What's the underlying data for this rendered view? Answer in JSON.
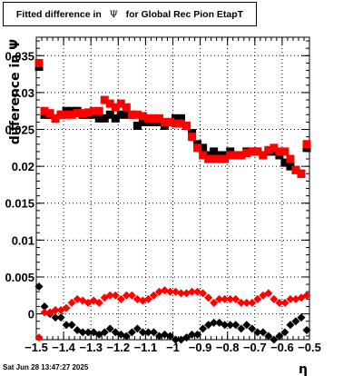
{
  "chart_data": {
    "type": "scatter",
    "title": "Fitted difference in Ψ for Global Rec Pion EtapT",
    "title_parts": [
      "Fitted difference in",
      "Ψ",
      "for Global Rec Pion EtapT"
    ],
    "xlabel": "η",
    "ylabel": "difference in Ψ",
    "xlim": [
      -1.5,
      -0.5
    ],
    "ylim": [
      -0.0035,
      0.0375
    ],
    "x_ticks": [
      -1.5,
      -1.4,
      -1.3,
      -1.2,
      -1.1,
      -1,
      -0.9,
      -0.8,
      -0.7,
      -0.6,
      -0.5
    ],
    "x_tick_labels": [
      "−1.5",
      "−1.4",
      "−1.3",
      "−1.2",
      "−1.1",
      "−1",
      "−0.9",
      "−0.8",
      "−0.7",
      "−0.6",
      "−0.5"
    ],
    "y_ticks": [
      0,
      0.005,
      0.01,
      0.015,
      0.02,
      0.025,
      0.03,
      0.035
    ],
    "y_tick_labels": [
      "0",
      "0.005",
      "0.01",
      "0.015",
      "0.02",
      "0.025",
      "0.03",
      "0.035"
    ],
    "grid": true,
    "legend": "none",
    "x": [
      -1.49,
      -1.47,
      -1.45,
      -1.43,
      -1.41,
      -1.39,
      -1.37,
      -1.35,
      -1.33,
      -1.31,
      -1.29,
      -1.27,
      -1.25,
      -1.23,
      -1.21,
      -1.19,
      -1.17,
      -1.15,
      -1.13,
      -1.11,
      -1.09,
      -1.07,
      -1.05,
      -1.03,
      -1.01,
      -0.99,
      -0.97,
      -0.95,
      -0.93,
      -0.91,
      -0.89,
      -0.87,
      -0.85,
      -0.83,
      -0.81,
      -0.79,
      -0.77,
      -0.75,
      -0.73,
      -0.71,
      -0.69,
      -0.67,
      -0.65,
      -0.63,
      -0.61,
      -0.59,
      -0.57,
      -0.55,
      -0.53,
      -0.51
    ],
    "series": [
      {
        "marker": "square",
        "color": "#000000",
        "values": [
          0.0335,
          0.027,
          0.027,
          0.0265,
          0.027,
          0.0275,
          0.0275,
          0.0275,
          0.027,
          0.027,
          0.027,
          0.0265,
          0.0265,
          0.027,
          0.0265,
          0.027,
          0.027,
          0.027,
          0.0255,
          0.026,
          0.026,
          0.026,
          0.026,
          0.0255,
          0.026,
          0.0265,
          0.0265,
          0.0255,
          0.0245,
          0.023,
          0.0225,
          0.0215,
          0.022,
          0.0215,
          0.0215,
          0.022,
          0.0215,
          0.0215,
          0.022,
          0.022,
          0.022,
          0.0215,
          0.022,
          0.022,
          0.0215,
          0.0205,
          0.02,
          0.0195,
          0.019,
          0.0225
        ]
      },
      {
        "marker": "square",
        "color": "#ff0000",
        "values": [
          0.034,
          0.0275,
          0.0272,
          0.0265,
          0.027,
          0.027,
          0.027,
          0.0272,
          0.0272,
          0.0273,
          0.0275,
          0.0275,
          0.029,
          0.0285,
          0.028,
          0.0285,
          0.028,
          0.027,
          0.027,
          0.0268,
          0.0265,
          0.0265,
          0.0265,
          0.026,
          0.026,
          0.0258,
          0.0258,
          0.0255,
          0.024,
          0.0225,
          0.0215,
          0.021,
          0.021,
          0.021,
          0.021,
          0.0215,
          0.0215,
          0.0215,
          0.0218,
          0.022,
          0.022,
          0.0215,
          0.0222,
          0.0225,
          0.022,
          0.022,
          0.021,
          0.0195,
          0.019,
          0.023
        ]
      },
      {
        "marker": "diamond",
        "color": "#000000",
        "values": [
          0.0037,
          0.001,
          0.0,
          -0.0005,
          -0.0005,
          -0.0015,
          -0.0015,
          -0.0022,
          -0.0025,
          -0.0025,
          -0.0025,
          -0.0028,
          -0.0025,
          -0.002,
          -0.0025,
          -0.0028,
          -0.003,
          -0.0025,
          -0.002,
          -0.0025,
          -0.0025,
          -0.0025,
          -0.003,
          -0.0028,
          -0.003,
          -0.0035,
          -0.0035,
          -0.0032,
          -0.0028,
          -0.0028,
          -0.002,
          -0.0015,
          -0.0012,
          -0.0012,
          -0.0015,
          -0.0015,
          -0.0015,
          -0.002,
          -0.0015,
          -0.002,
          -0.0025,
          -0.0025,
          -0.003,
          -0.0035,
          -0.003,
          -0.0025,
          -0.0015,
          -0.001,
          -0.0005,
          -0.0022
        ]
      },
      {
        "marker": "diamond",
        "color": "#ff0000",
        "values": [
          -0.0032,
          0.0002,
          0.0002,
          0.0005,
          0.0005,
          0.0008,
          0.0015,
          0.002,
          0.0018,
          0.0015,
          0.0018,
          0.0015,
          0.0022,
          0.0025,
          0.0025,
          0.002,
          0.0025,
          0.0025,
          0.002,
          0.0018,
          0.002,
          0.0025,
          0.003,
          0.0032,
          0.003,
          0.003,
          0.0028,
          0.0028,
          0.003,
          0.003,
          0.0028,
          0.0022,
          0.0015,
          0.002,
          0.002,
          0.002,
          0.002,
          0.0015,
          0.0015,
          0.0015,
          0.002,
          0.0025,
          0.0028,
          0.002,
          0.0015,
          0.0015,
          0.002,
          0.002,
          0.0022,
          0.0025
        ]
      }
    ]
  },
  "footer": {
    "timestamp": "Sat Jun 28 13:47:27 2025"
  }
}
